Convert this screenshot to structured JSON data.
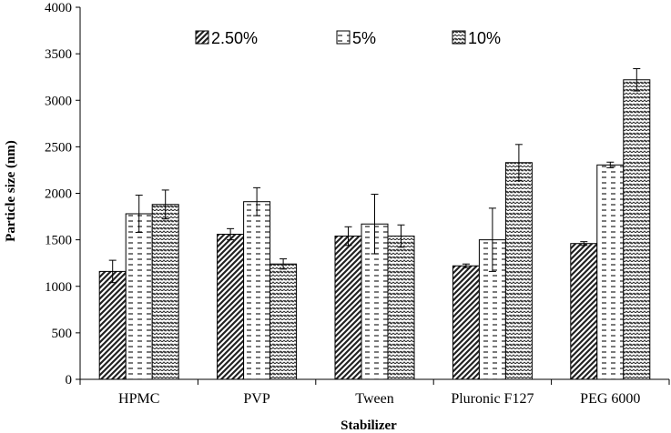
{
  "chart_data": {
    "type": "bar",
    "title": "",
    "xlabel": "Stabilizer",
    "ylabel": "Particle size (nm)",
    "ylim": [
      0,
      4000
    ],
    "yticks": [
      0,
      500,
      1000,
      1500,
      2000,
      2500,
      3000,
      3500,
      4000
    ],
    "grid": false,
    "legend_position": "top",
    "categories": [
      "HPMC",
      "PVP",
      "Tween",
      "Pluronic F127",
      "PEG 6000"
    ],
    "series": [
      {
        "name": "2.50%",
        "pattern": "diagonal",
        "values": [
          1160,
          1560,
          1540,
          1220,
          1460
        ],
        "errors": [
          120,
          60,
          100,
          20,
          20
        ]
      },
      {
        "name": "5%",
        "pattern": "dashed",
        "values": [
          1780,
          1910,
          1670,
          1500,
          2305
        ],
        "errors": [
          200,
          150,
          320,
          340,
          30
        ]
      },
      {
        "name": "10%",
        "pattern": "zigzag",
        "values": [
          1880,
          1240,
          1540,
          2330,
          3220
        ],
        "errors": [
          155,
          55,
          120,
          195,
          120
        ]
      }
    ]
  }
}
